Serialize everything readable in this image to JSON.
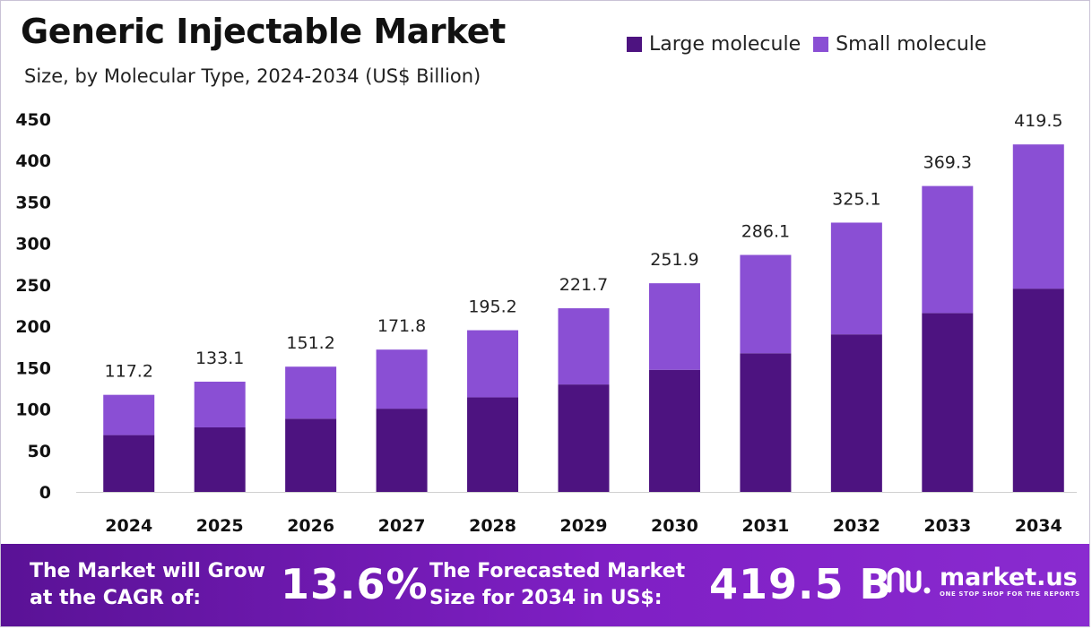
{
  "header": {
    "title": "Generic Injectable Market",
    "subtitle": "Size, by Molecular Type, 2024-2034 (US$ Billion)"
  },
  "legend": {
    "items": [
      {
        "label": "Large molecule",
        "color": "#4d1380"
      },
      {
        "label": "Small molecule",
        "color": "#8a4fd4"
      }
    ]
  },
  "chart_data": {
    "type": "bar",
    "stacked": true,
    "title": "Generic Injectable Market",
    "subtitle": "Size, by Molecular Type, 2024-2034 (US$ Billion)",
    "categories": [
      "2024",
      "2025",
      "2026",
      "2027",
      "2028",
      "2029",
      "2030",
      "2031",
      "2032",
      "2033",
      "2034"
    ],
    "series": [
      {
        "name": "Large molecule",
        "color": "#4d1380",
        "values": [
          68.6,
          77.9,
          88.4,
          100.5,
          114.2,
          129.7,
          147.4,
          167.4,
          190.2,
          216.0,
          245.4
        ]
      },
      {
        "name": "Small molecule",
        "color": "#8a4fd4",
        "values": [
          48.6,
          55.2,
          62.8,
          71.3,
          81.0,
          92.0,
          104.5,
          118.7,
          134.9,
          153.3,
          174.1
        ]
      }
    ],
    "totals": [
      "117.2",
      "133.1",
      "151.2",
      "171.8",
      "195.2",
      "221.7",
      "251.9",
      "286.1",
      "325.1",
      "369.3",
      "419.5"
    ],
    "y_ticks": [
      0,
      50,
      100,
      150,
      200,
      250,
      300,
      350,
      400,
      450
    ],
    "ylim": [
      0,
      450
    ],
    "grid": false,
    "legend_position": "top-right"
  },
  "footer": {
    "cagr_label_line1": "The Market will Grow",
    "cagr_label_line2": "at the CAGR of:",
    "cagr_value": "13.6%",
    "forecast_label_line1": "The Forecasted Market",
    "forecast_label_line2": "Size for 2034 in US$:",
    "forecast_value": "419.5 B",
    "brand_name": "market.us",
    "brand_tagline": "ONE STOP SHOP FOR THE REPORTS",
    "brand_icon": "market-us-logo-icon"
  }
}
